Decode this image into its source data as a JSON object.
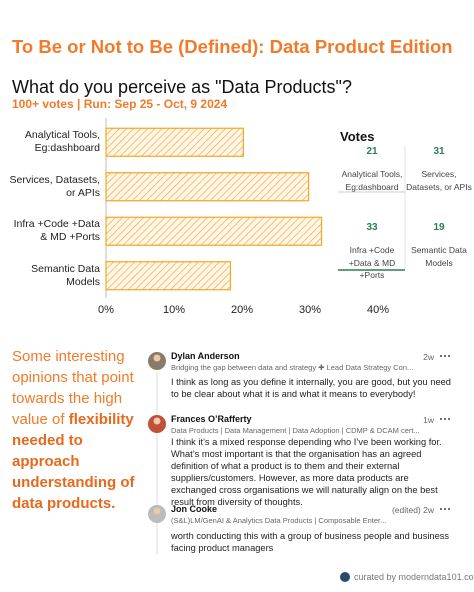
{
  "header": {
    "title": "To Be or Not to Be (Defined): Data Product Edition"
  },
  "chart_data": {
    "type": "bar",
    "orientation": "horizontal",
    "title": "What do you perceive as \"Data Products\"?",
    "subtitle": "100+ votes | Run: Sep 25 - Oct, 9 2024",
    "categories": [
      "Analytical Tools, Eg:dashboard",
      "Services, Datasets, or APIs",
      "Infra +Code +Data & MD +Ports",
      "Semantic Data Models"
    ],
    "values": [
      20.2,
      29.8,
      31.7,
      18.3
    ],
    "color": "#f5a623",
    "xlim": [
      0,
      40
    ],
    "xticks": [
      {
        "value": 0,
        "label": "0%"
      },
      {
        "value": 10,
        "label": "10%"
      },
      {
        "value": 20,
        "label": "20%"
      },
      {
        "value": 30,
        "label": "30%"
      },
      {
        "value": 40,
        "label": "40%"
      }
    ],
    "grid": false
  },
  "votes_table": {
    "title": "Votes",
    "cells": [
      {
        "value": 21,
        "label": "Analytical Tools, Eg:dashboard"
      },
      {
        "value": 31,
        "label": "Services, Datasets, or APIs"
      },
      {
        "value": 33,
        "label": "Infra +Code +Data & MD +Ports"
      },
      {
        "value": 19,
        "label": "Semantic Data Models"
      }
    ]
  },
  "insight": {
    "lead": "Some interesting opinions that point towards the high value of",
    "emphasis": "flexibility needed to approach understanding of data products."
  },
  "comments": [
    {
      "name": "Dylan Anderson",
      "time": "2w",
      "headline": "Bridging the gap between data and strategy ✚ Lead Data Strategy Con...",
      "body": "I think as long as you define it internally, you are good, but you need to be clear about what it is and what it means to everybody!"
    },
    {
      "name": "Frances O’Rafferty",
      "time": "1w",
      "headline": "Data Products | Data Management | Data Adoption | CDMP & DCAM cert...",
      "body": "I think it’s a mixed response depending who I’ve been working for. What’s most important is that the organisation has an agreed definition of what a product is to them and their external suppliers/customers. However, as more data products are exchanged cross organisations we will naturally align on the best result from diversity of thoughts."
    },
    {
      "name": "Jon Cooke",
      "time": "(edited) 2w",
      "headline": "(S&L)LM/GenAI & Analytics Data Products | Composable Enter...",
      "body": "worth conducting this with a group of business people and business facing product managers"
    }
  ],
  "footer": {
    "credit": "curated by moderndata101.com"
  }
}
